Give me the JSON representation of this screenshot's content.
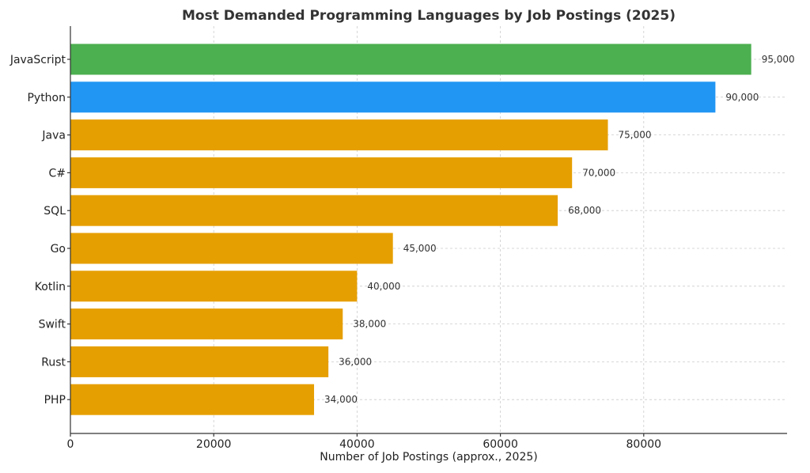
{
  "chart_data": {
    "type": "bar",
    "orientation": "horizontal",
    "title": "Most Demanded Programming Languages by Job Postings (2025)",
    "xlabel": "Number of Job Postings (approx., 2025)",
    "ylabel": "",
    "xlim": [
      0,
      100000
    ],
    "xticks": [
      0,
      20000,
      40000,
      60000,
      80000
    ],
    "grid": true,
    "categories": [
      "JavaScript",
      "Python",
      "Java",
      "C#",
      "SQL",
      "Go",
      "Kotlin",
      "Swift",
      "Rust",
      "PHP"
    ],
    "values": [
      95000,
      90000,
      75000,
      70000,
      68000,
      45000,
      40000,
      38000,
      36000,
      34000
    ],
    "value_labels": [
      "95,000",
      "90,000",
      "75,000",
      "70,000",
      "68,000",
      "45,000",
      "40,000",
      "38,000",
      "36,000",
      "34,000"
    ],
    "colors": [
      "#4CAF50",
      "#2196F3",
      "#E69F00",
      "#E69F00",
      "#E69F00",
      "#E69F00",
      "#E69F00",
      "#E69F00",
      "#E69F00",
      "#E69F00"
    ]
  }
}
